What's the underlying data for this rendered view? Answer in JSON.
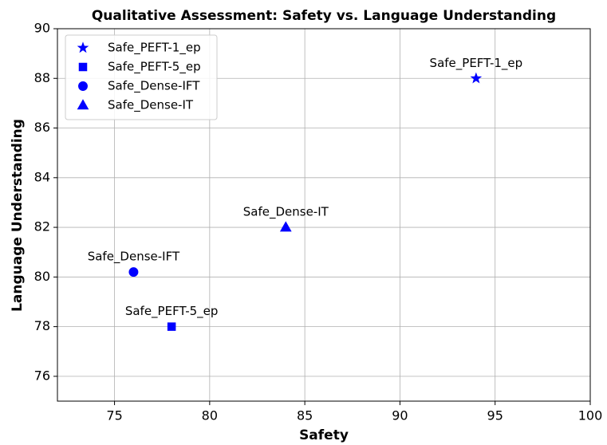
{
  "chart_data": {
    "type": "scatter",
    "title": "Qualitative Assessment: Safety vs. Language Understanding",
    "xlabel": "Safety",
    "ylabel": "Language Understanding",
    "series": [
      {
        "name": "Safe_PEFT-1_ep",
        "color": "#0000ff",
        "marker": "star",
        "x": [
          94
        ],
        "values": [
          88
        ]
      },
      {
        "name": "Safe_PEFT-5_ep",
        "color": "#0000ff",
        "marker": "square",
        "x": [
          78
        ],
        "values": [
          78
        ]
      },
      {
        "name": "Safe_Dense-IFT",
        "color": "#0000ff",
        "marker": "circle",
        "x": [
          76
        ],
        "values": [
          80.2
        ]
      },
      {
        "name": "Safe_Dense-IT",
        "color": "#0000ff",
        "marker": "triangle",
        "x": [
          84
        ],
        "values": [
          82
        ]
      }
    ],
    "xlim": [
      72,
      100
    ],
    "ylim": [
      75,
      90
    ],
    "xticks": [
      75,
      80,
      85,
      90,
      95,
      100
    ],
    "yticks": [
      76,
      78,
      80,
      82,
      84,
      86,
      88,
      90
    ],
    "grid": true,
    "legend": "upper left"
  }
}
